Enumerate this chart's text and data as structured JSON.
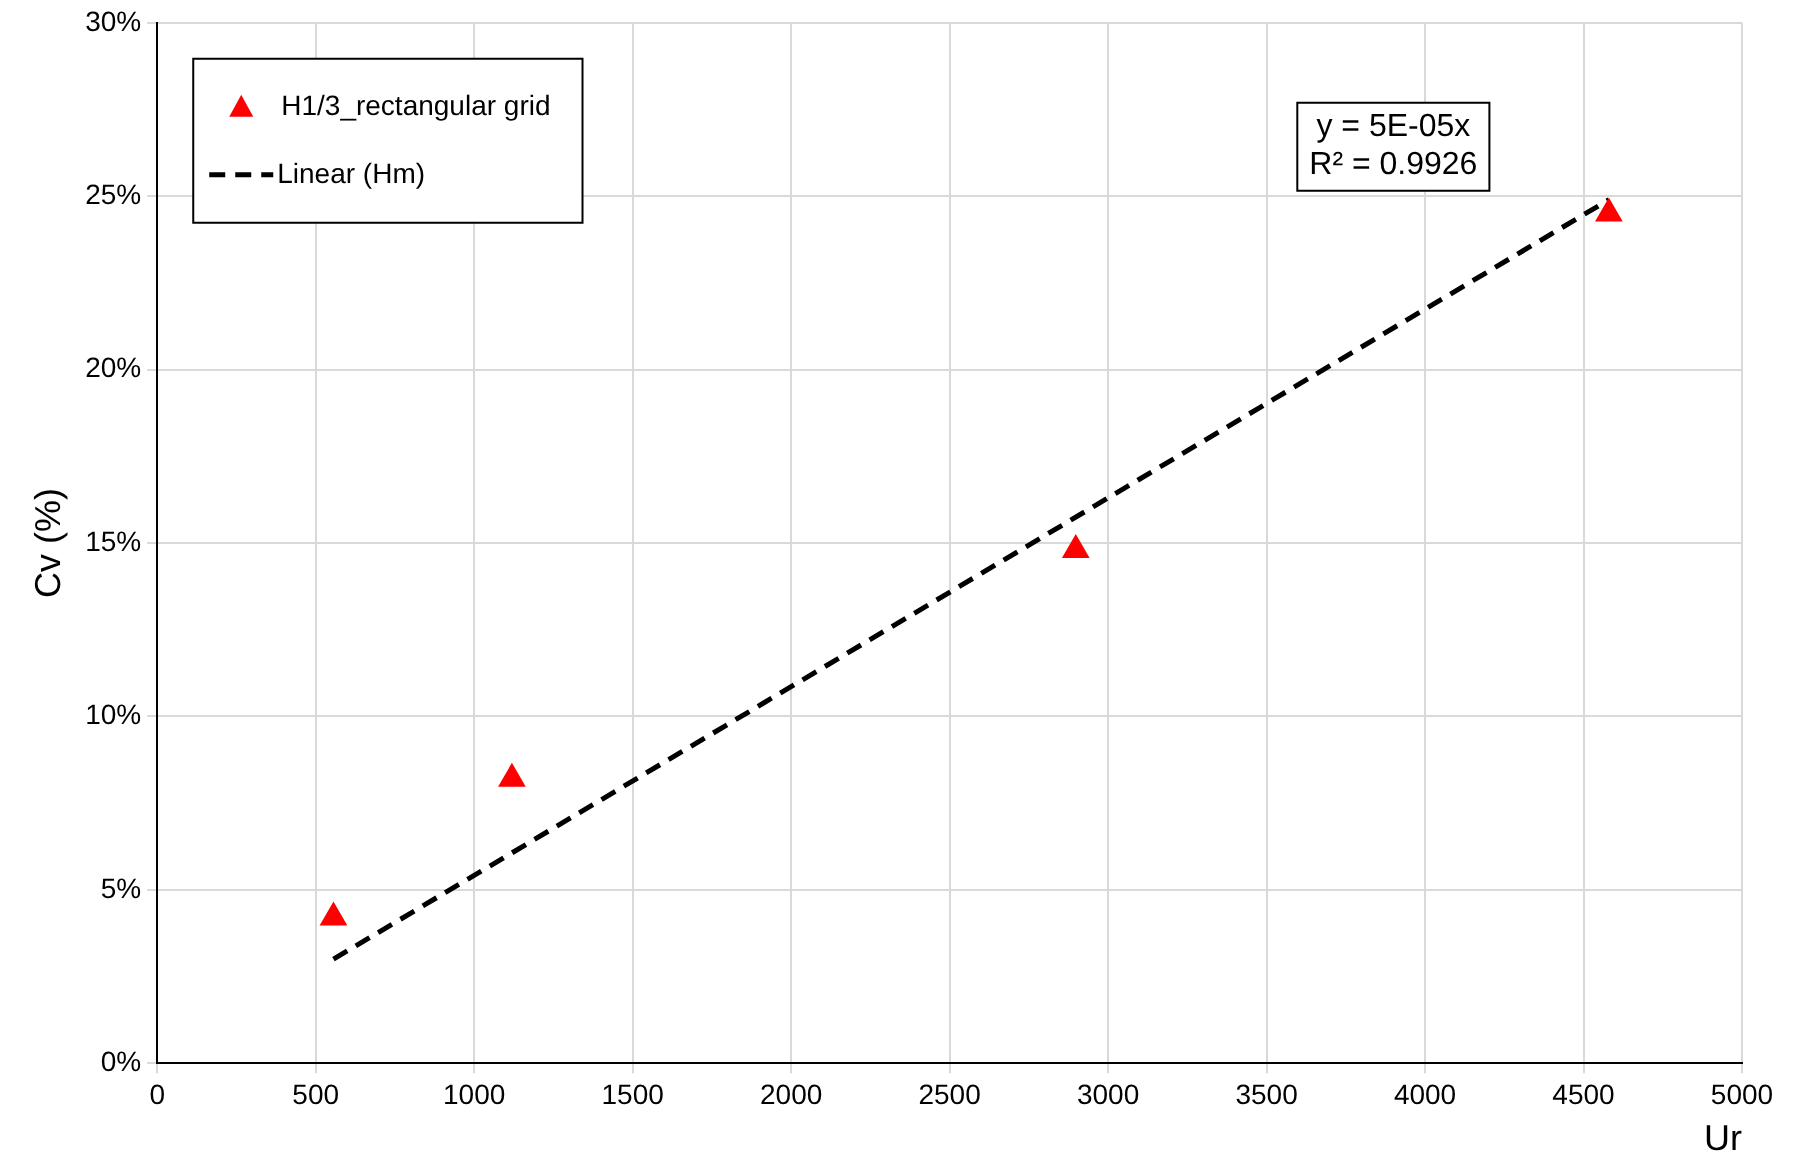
{
  "chart_data": {
    "type": "scatter",
    "xlabel": "Ur",
    "ylabel": "Cv (%)",
    "xlim": [
      0,
      5000
    ],
    "xticks": [
      0,
      500,
      1000,
      1500,
      2000,
      2500,
      3000,
      3500,
      4000,
      4500,
      5000
    ],
    "ylim": [
      0,
      30
    ],
    "yticks": [
      {
        "value": 0,
        "label": "0%"
      },
      {
        "value": 5,
        "label": "5%"
      },
      {
        "value": 10,
        "label": "10%"
      },
      {
        "value": 15,
        "label": "15%"
      },
      {
        "value": 20,
        "label": "20%"
      },
      {
        "value": 25,
        "label": "25%"
      },
      {
        "value": 30,
        "label": "30%"
      }
    ],
    "grid": true,
    "legend": "top left",
    "series": [
      {
        "name": "H1/3_rectangular grid",
        "type": "scatter",
        "marker": "triangle",
        "color": "#ff0000",
        "x": [
          556,
          1119,
          2898,
          4580
        ],
        "values": [
          4.2,
          8.2,
          14.8,
          24.5
        ]
      },
      {
        "name": "Linear (Hm)",
        "type": "line",
        "marker": "none",
        "line_style": "dashed",
        "color": "#000000",
        "x": [
          556,
          4580
        ],
        "values": [
          3.0,
          24.9
        ]
      }
    ],
    "annotations": [
      "y = 5E-05x",
      "R² = 0.9926"
    ]
  }
}
